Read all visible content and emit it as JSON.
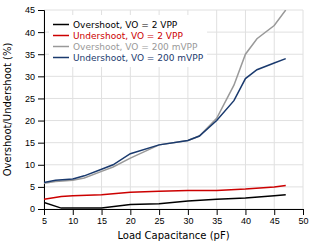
{
  "chart_data": {
    "type": "line",
    "xlabel": "Load Capacitance (pF)",
    "ylabel": "Overshoot/Undershoot (%)",
    "xlim": [
      5,
      50
    ],
    "ylim": [
      0,
      45
    ],
    "xticks": [
      5,
      10,
      15,
      20,
      25,
      30,
      35,
      40,
      45,
      50
    ],
    "yticks": [
      0,
      5,
      10,
      15,
      20,
      25,
      30,
      35,
      40,
      45
    ],
    "grid": true,
    "legend": "upper left",
    "series": [
      {
        "name": "Overshoot, VO = 2 VPP",
        "color": "#000000",
        "x": [
          5,
          8,
          10,
          15,
          20,
          25,
          30,
          35,
          40,
          45,
          47
        ],
        "values": [
          1.5,
          0.2,
          0.2,
          0.2,
          1.0,
          1.2,
          1.8,
          2.2,
          2.5,
          3.0,
          3.2
        ]
      },
      {
        "name": "Undershoot, VO = 2 VPP",
        "color": "#cc0000",
        "x": [
          5,
          8,
          10,
          15,
          20,
          25,
          30,
          35,
          40,
          45,
          47
        ],
        "values": [
          2.2,
          2.8,
          3.0,
          3.2,
          3.8,
          4.0,
          4.2,
          4.2,
          4.5,
          5.0,
          5.3
        ]
      },
      {
        "name": "Overshoot, VO = 200 mVPP",
        "color": "#999999",
        "x": [
          5,
          7,
          10,
          12,
          15,
          17,
          20,
          25,
          30,
          32,
          35,
          38,
          40,
          42,
          45,
          47
        ],
        "values": [
          5.8,
          6.2,
          6.5,
          7.0,
          8.5,
          9.5,
          11.5,
          14.5,
          15.5,
          16.5,
          20.5,
          28.0,
          35.0,
          38.5,
          41.5,
          45.0
        ]
      },
      {
        "name": "Undershoot, VO = 200 mVPP",
        "color": "#1a3a6e",
        "x": [
          5,
          7,
          10,
          12,
          15,
          17,
          20,
          25,
          30,
          32,
          35,
          38,
          40,
          42,
          45,
          47
        ],
        "values": [
          6.0,
          6.5,
          6.8,
          7.5,
          9.0,
          10.0,
          12.5,
          14.5,
          15.5,
          16.5,
          20.0,
          24.5,
          29.5,
          31.5,
          33.0,
          34.0
        ]
      }
    ]
  }
}
